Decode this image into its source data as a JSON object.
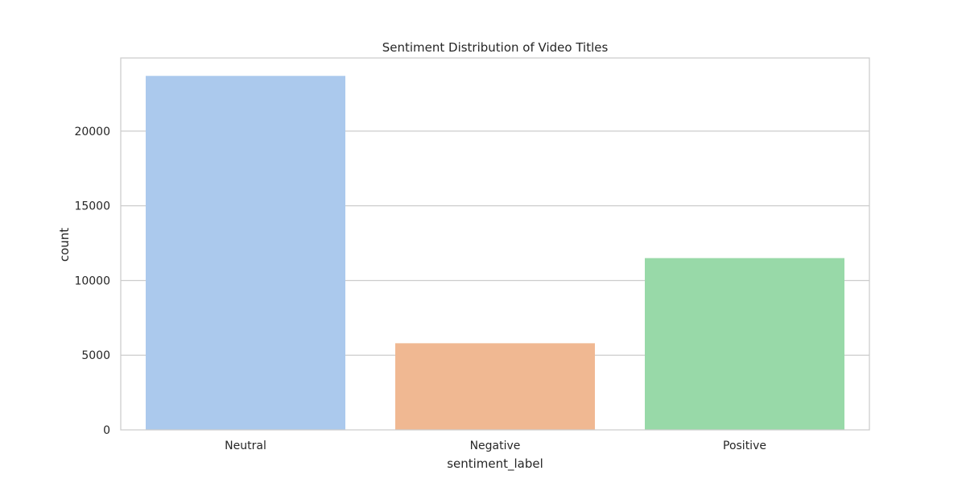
{
  "chart_data": {
    "type": "bar",
    "title": "Sentiment Distribution of Video Titles",
    "xlabel": "sentiment_label",
    "ylabel": "count",
    "categories": [
      "Neutral",
      "Negative",
      "Positive"
    ],
    "values": [
      23700,
      5800,
      11500
    ],
    "colors": [
      "#abc9ed",
      "#f0b892",
      "#98d9a8"
    ],
    "ylim": [
      0,
      24900
    ],
    "yticks": [
      0,
      5000,
      10000,
      15000,
      20000
    ],
    "ytick_labels": [
      "0",
      "5000",
      "10000",
      "15000",
      "20000"
    ],
    "grid": "horizontal",
    "grid_color": "#cccccc",
    "frame_color": "#cccccc",
    "text_color": "#262626"
  }
}
